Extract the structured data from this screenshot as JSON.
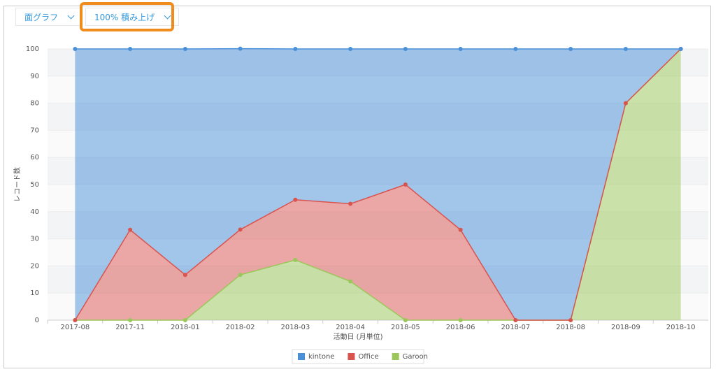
{
  "controls": [
    "面グラフ",
    "100% 積み上げ"
  ],
  "chart_data": {
    "type": "area",
    "stacked": "percent",
    "x_label": "活動日 (月単位)",
    "y_label": "レコード数",
    "categories": [
      "2017-08",
      "2017-11",
      "2018-01",
      "2018-02",
      "2018-03",
      "2018-04",
      "2018-05",
      "2018-06",
      "2018-07",
      "2018-08",
      "2018-09",
      "2018-10"
    ],
    "series": [
      {
        "name": "kintone",
        "color": "#4a90d9",
        "values": [
          100,
          66.7,
          83.3,
          66.7,
          55.6,
          57.1,
          50,
          66.7,
          100,
          100,
          20,
          0
        ]
      },
      {
        "name": "Office",
        "color": "#d9534f",
        "values": [
          0,
          33.3,
          16.7,
          16.7,
          22.2,
          28.6,
          50,
          33.3,
          0,
          0,
          0,
          0
        ]
      },
      {
        "name": "Garoon",
        "color": "#9bc75a",
        "values": [
          0,
          0,
          0,
          16.7,
          22.2,
          14.3,
          0,
          0,
          0,
          0,
          80,
          100
        ]
      }
    ],
    "ylim": [
      0,
      100
    ],
    "yticks": [
      0,
      10,
      20,
      30,
      40,
      50,
      60,
      70,
      80,
      90,
      100
    ],
    "grid": true,
    "legend": "bottom"
  }
}
